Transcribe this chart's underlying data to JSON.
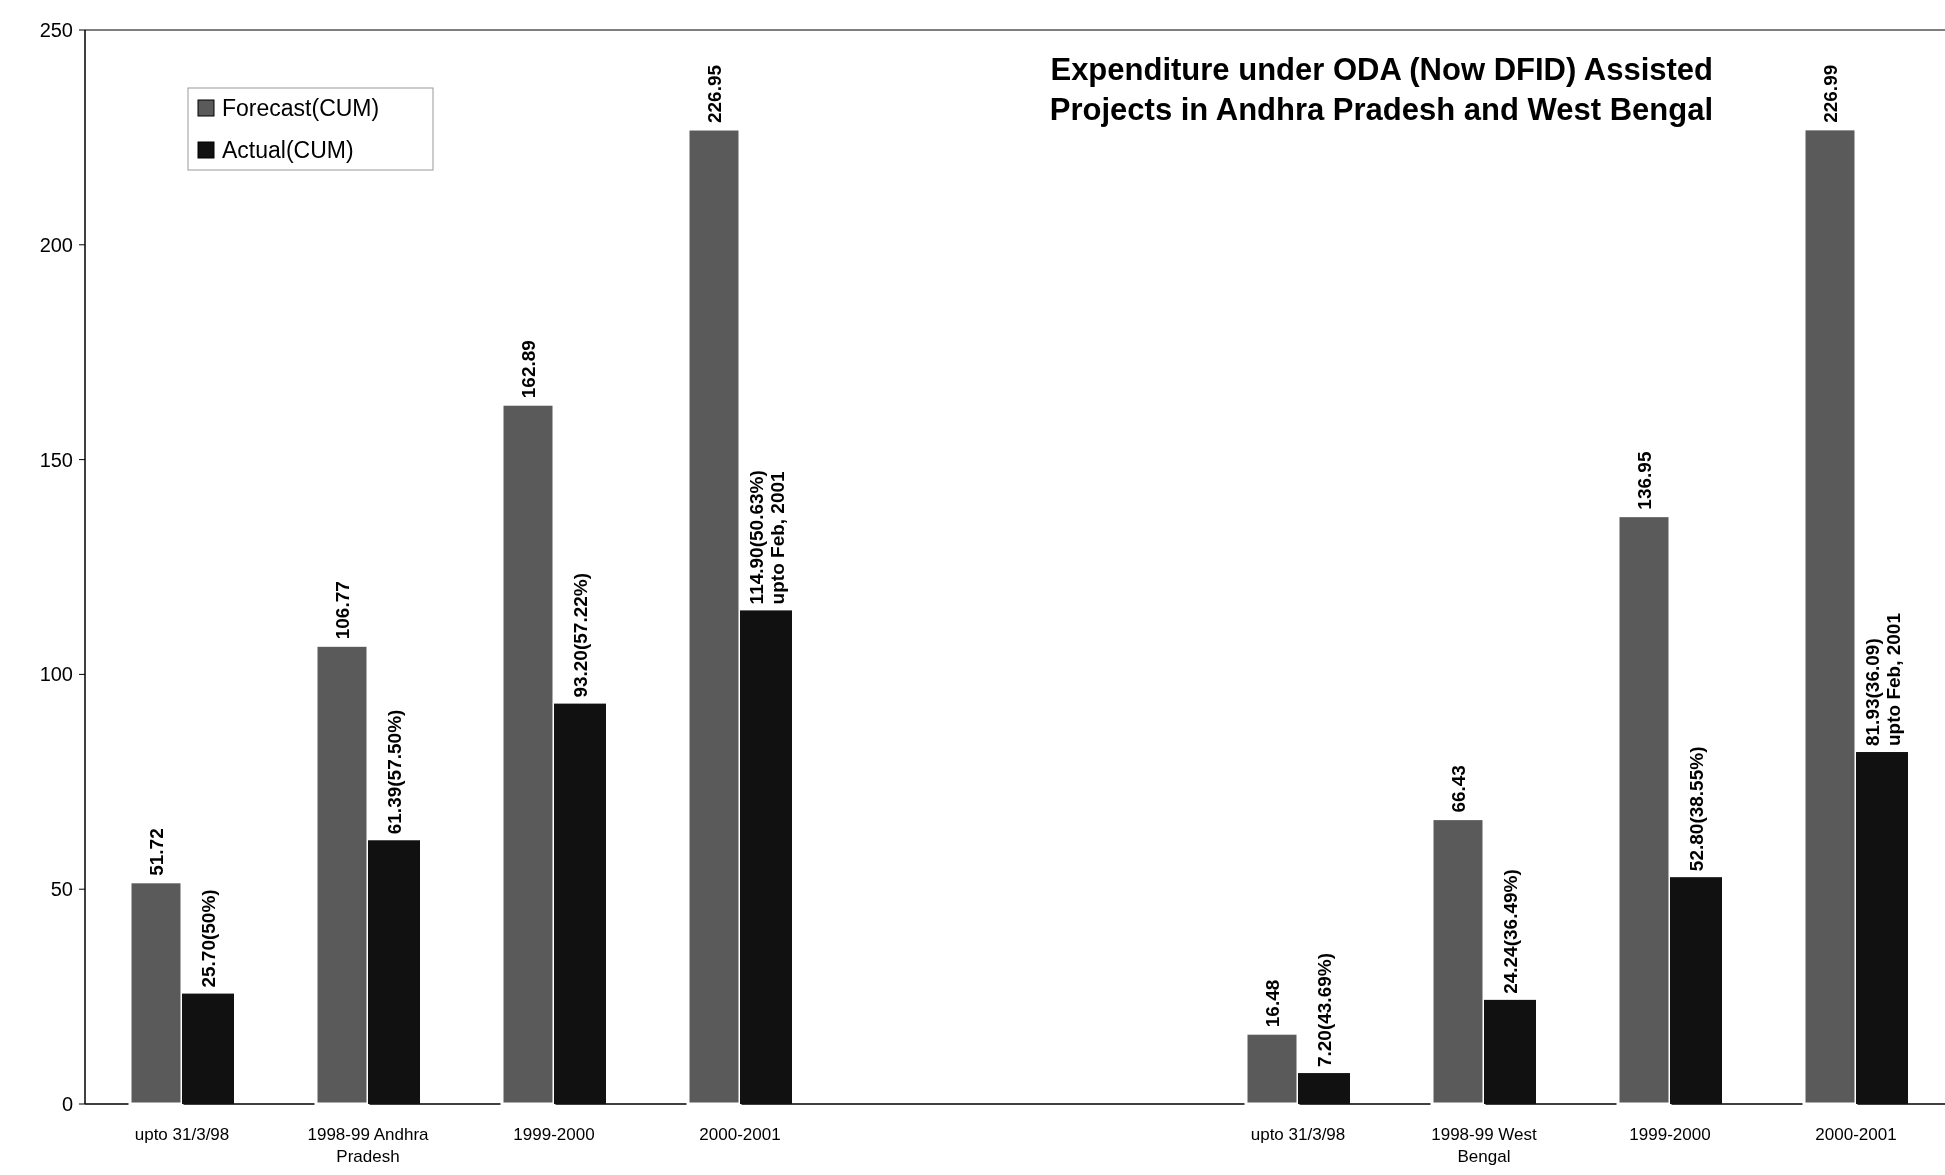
{
  "chart_data": {
    "type": "bar",
    "title": "Expenditure under ODA (Now DFID) Assisted Projects in Andhra Pradesh and West Bengal",
    "categories": [
      "upto 31/3/98",
      "1998-99 Andhra Pradesh",
      "1999-2000",
      "2000-2001",
      null,
      null,
      "upto 31/3/98",
      "1998-99 West Bengal",
      "1999-2000",
      "2000-2001"
    ],
    "series": [
      {
        "name": "Forecast(CUM)",
        "color": "#5a5a5a",
        "values": [
          51.72,
          106.77,
          162.89,
          226.95,
          null,
          null,
          16.48,
          66.43,
          136.95,
          226.99
        ],
        "value_labels": [
          "51.72",
          "106.77",
          "162.89",
          "226.95",
          null,
          null,
          "16.48",
          "66.43",
          "136.95",
          "226.99"
        ]
      },
      {
        "name": "Actual(CUM)",
        "color": "#111111",
        "values": [
          25.7,
          61.39,
          93.2,
          114.9,
          null,
          null,
          7.2,
          24.24,
          52.8,
          81.93
        ],
        "value_labels": [
          "25.70(50%)",
          "61.39(57.50%)",
          "93.20(57.22%)",
          "114.90(50.63%)\nupto Feb, 2001",
          null,
          null,
          "7.20(43.69%)",
          "24.24(36.49%)",
          "52.80(38.55%)",
          "81.93(36.09)\nupto Feb, 2001"
        ]
      }
    ],
    "ylim": [
      0,
      250
    ],
    "yticks": [
      0,
      50,
      100,
      150,
      200,
      250
    ],
    "legend": "top left"
  }
}
